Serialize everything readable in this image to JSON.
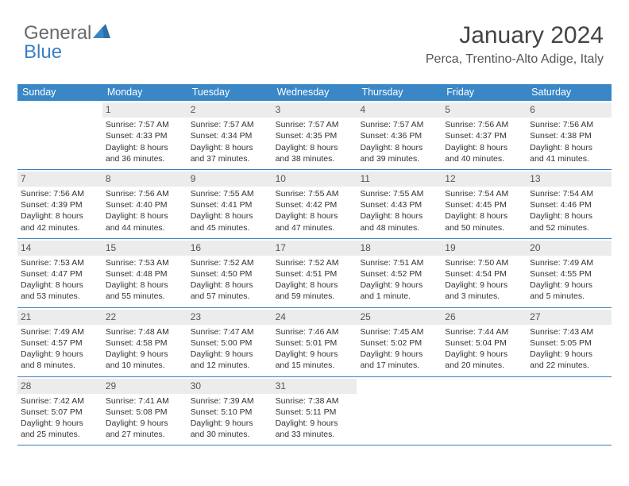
{
  "brand": {
    "part1": "General",
    "part2": "Blue"
  },
  "title": {
    "month": "January 2024",
    "location": "Perca, Trentino-Alto Adige, Italy"
  },
  "colors": {
    "header_bg": "#3a87c7",
    "header_text": "#ffffff",
    "daynum_bg": "#ececec",
    "week_border": "#3a7fb8",
    "text": "#333333",
    "brand_gray": "#6a6a6a",
    "brand_blue": "#3a7fc4"
  },
  "fonts": {
    "body_pt": 10.5,
    "daynum_pt": 12,
    "header_pt": 12.5,
    "title_pt": 30,
    "loc_pt": 16
  },
  "day_names": [
    "Sunday",
    "Monday",
    "Tuesday",
    "Wednesday",
    "Thursday",
    "Friday",
    "Saturday"
  ],
  "weeks": [
    [
      {
        "n": "",
        "sr": "",
        "ss": "",
        "dl1": "",
        "dl2": ""
      },
      {
        "n": "1",
        "sr": "Sunrise: 7:57 AM",
        "ss": "Sunset: 4:33 PM",
        "dl1": "Daylight: 8 hours",
        "dl2": "and 36 minutes."
      },
      {
        "n": "2",
        "sr": "Sunrise: 7:57 AM",
        "ss": "Sunset: 4:34 PM",
        "dl1": "Daylight: 8 hours",
        "dl2": "and 37 minutes."
      },
      {
        "n": "3",
        "sr": "Sunrise: 7:57 AM",
        "ss": "Sunset: 4:35 PM",
        "dl1": "Daylight: 8 hours",
        "dl2": "and 38 minutes."
      },
      {
        "n": "4",
        "sr": "Sunrise: 7:57 AM",
        "ss": "Sunset: 4:36 PM",
        "dl1": "Daylight: 8 hours",
        "dl2": "and 39 minutes."
      },
      {
        "n": "5",
        "sr": "Sunrise: 7:56 AM",
        "ss": "Sunset: 4:37 PM",
        "dl1": "Daylight: 8 hours",
        "dl2": "and 40 minutes."
      },
      {
        "n": "6",
        "sr": "Sunrise: 7:56 AM",
        "ss": "Sunset: 4:38 PM",
        "dl1": "Daylight: 8 hours",
        "dl2": "and 41 minutes."
      }
    ],
    [
      {
        "n": "7",
        "sr": "Sunrise: 7:56 AM",
        "ss": "Sunset: 4:39 PM",
        "dl1": "Daylight: 8 hours",
        "dl2": "and 42 minutes."
      },
      {
        "n": "8",
        "sr": "Sunrise: 7:56 AM",
        "ss": "Sunset: 4:40 PM",
        "dl1": "Daylight: 8 hours",
        "dl2": "and 44 minutes."
      },
      {
        "n": "9",
        "sr": "Sunrise: 7:55 AM",
        "ss": "Sunset: 4:41 PM",
        "dl1": "Daylight: 8 hours",
        "dl2": "and 45 minutes."
      },
      {
        "n": "10",
        "sr": "Sunrise: 7:55 AM",
        "ss": "Sunset: 4:42 PM",
        "dl1": "Daylight: 8 hours",
        "dl2": "and 47 minutes."
      },
      {
        "n": "11",
        "sr": "Sunrise: 7:55 AM",
        "ss": "Sunset: 4:43 PM",
        "dl1": "Daylight: 8 hours",
        "dl2": "and 48 minutes."
      },
      {
        "n": "12",
        "sr": "Sunrise: 7:54 AM",
        "ss": "Sunset: 4:45 PM",
        "dl1": "Daylight: 8 hours",
        "dl2": "and 50 minutes."
      },
      {
        "n": "13",
        "sr": "Sunrise: 7:54 AM",
        "ss": "Sunset: 4:46 PM",
        "dl1": "Daylight: 8 hours",
        "dl2": "and 52 minutes."
      }
    ],
    [
      {
        "n": "14",
        "sr": "Sunrise: 7:53 AM",
        "ss": "Sunset: 4:47 PM",
        "dl1": "Daylight: 8 hours",
        "dl2": "and 53 minutes."
      },
      {
        "n": "15",
        "sr": "Sunrise: 7:53 AM",
        "ss": "Sunset: 4:48 PM",
        "dl1": "Daylight: 8 hours",
        "dl2": "and 55 minutes."
      },
      {
        "n": "16",
        "sr": "Sunrise: 7:52 AM",
        "ss": "Sunset: 4:50 PM",
        "dl1": "Daylight: 8 hours",
        "dl2": "and 57 minutes."
      },
      {
        "n": "17",
        "sr": "Sunrise: 7:52 AM",
        "ss": "Sunset: 4:51 PM",
        "dl1": "Daylight: 8 hours",
        "dl2": "and 59 minutes."
      },
      {
        "n": "18",
        "sr": "Sunrise: 7:51 AM",
        "ss": "Sunset: 4:52 PM",
        "dl1": "Daylight: 9 hours",
        "dl2": "and 1 minute."
      },
      {
        "n": "19",
        "sr": "Sunrise: 7:50 AM",
        "ss": "Sunset: 4:54 PM",
        "dl1": "Daylight: 9 hours",
        "dl2": "and 3 minutes."
      },
      {
        "n": "20",
        "sr": "Sunrise: 7:49 AM",
        "ss": "Sunset: 4:55 PM",
        "dl1": "Daylight: 9 hours",
        "dl2": "and 5 minutes."
      }
    ],
    [
      {
        "n": "21",
        "sr": "Sunrise: 7:49 AM",
        "ss": "Sunset: 4:57 PM",
        "dl1": "Daylight: 9 hours",
        "dl2": "and 8 minutes."
      },
      {
        "n": "22",
        "sr": "Sunrise: 7:48 AM",
        "ss": "Sunset: 4:58 PM",
        "dl1": "Daylight: 9 hours",
        "dl2": "and 10 minutes."
      },
      {
        "n": "23",
        "sr": "Sunrise: 7:47 AM",
        "ss": "Sunset: 5:00 PM",
        "dl1": "Daylight: 9 hours",
        "dl2": "and 12 minutes."
      },
      {
        "n": "24",
        "sr": "Sunrise: 7:46 AM",
        "ss": "Sunset: 5:01 PM",
        "dl1": "Daylight: 9 hours",
        "dl2": "and 15 minutes."
      },
      {
        "n": "25",
        "sr": "Sunrise: 7:45 AM",
        "ss": "Sunset: 5:02 PM",
        "dl1": "Daylight: 9 hours",
        "dl2": "and 17 minutes."
      },
      {
        "n": "26",
        "sr": "Sunrise: 7:44 AM",
        "ss": "Sunset: 5:04 PM",
        "dl1": "Daylight: 9 hours",
        "dl2": "and 20 minutes."
      },
      {
        "n": "27",
        "sr": "Sunrise: 7:43 AM",
        "ss": "Sunset: 5:05 PM",
        "dl1": "Daylight: 9 hours",
        "dl2": "and 22 minutes."
      }
    ],
    [
      {
        "n": "28",
        "sr": "Sunrise: 7:42 AM",
        "ss": "Sunset: 5:07 PM",
        "dl1": "Daylight: 9 hours",
        "dl2": "and 25 minutes."
      },
      {
        "n": "29",
        "sr": "Sunrise: 7:41 AM",
        "ss": "Sunset: 5:08 PM",
        "dl1": "Daylight: 9 hours",
        "dl2": "and 27 minutes."
      },
      {
        "n": "30",
        "sr": "Sunrise: 7:39 AM",
        "ss": "Sunset: 5:10 PM",
        "dl1": "Daylight: 9 hours",
        "dl2": "and 30 minutes."
      },
      {
        "n": "31",
        "sr": "Sunrise: 7:38 AM",
        "ss": "Sunset: 5:11 PM",
        "dl1": "Daylight: 9 hours",
        "dl2": "and 33 minutes."
      },
      {
        "n": "",
        "sr": "",
        "ss": "",
        "dl1": "",
        "dl2": ""
      },
      {
        "n": "",
        "sr": "",
        "ss": "",
        "dl1": "",
        "dl2": ""
      },
      {
        "n": "",
        "sr": "",
        "ss": "",
        "dl1": "",
        "dl2": ""
      }
    ]
  ]
}
